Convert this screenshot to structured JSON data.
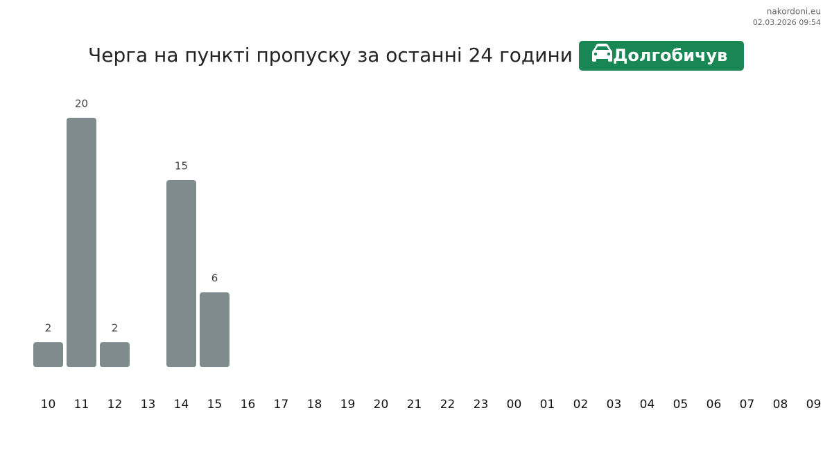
{
  "header": {
    "site": "nakordoni.eu",
    "timestamp": "02.03.2026 09:54"
  },
  "chart_data": {
    "type": "bar",
    "title": "Черга на пункті пропуску за останні 24 години",
    "badge": "Долгобичув",
    "categories": [
      "10",
      "11",
      "12",
      "13",
      "14",
      "15",
      "16",
      "17",
      "18",
      "19",
      "20",
      "21",
      "22",
      "23",
      "00",
      "01",
      "02",
      "03",
      "04",
      "05",
      "06",
      "07",
      "08",
      "09"
    ],
    "values": [
      2,
      20,
      2,
      null,
      15,
      6,
      null,
      null,
      null,
      null,
      null,
      null,
      null,
      null,
      null,
      null,
      null,
      null,
      null,
      null,
      null,
      null,
      null,
      null
    ],
    "color": "#7f8c8d"
  }
}
